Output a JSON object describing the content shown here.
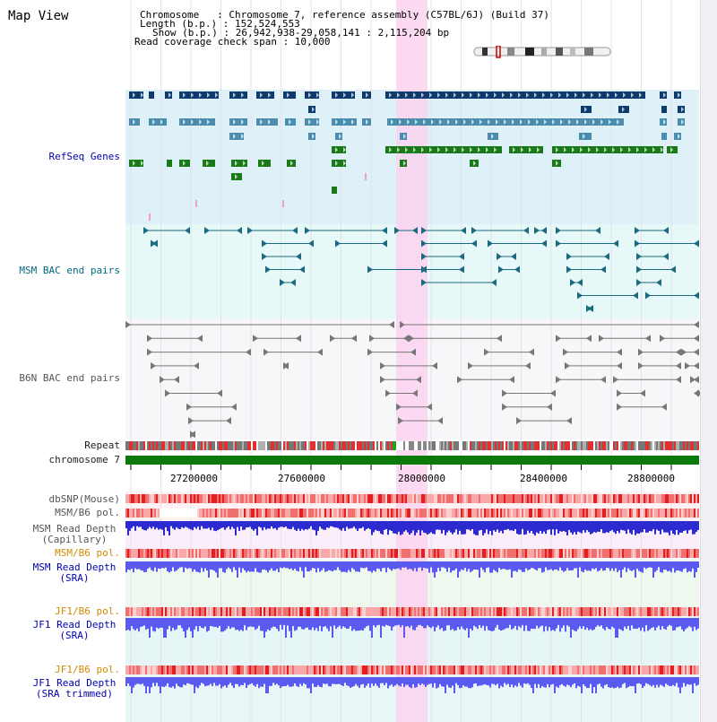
{
  "title": "Map View",
  "info": {
    "line1": "Chromosome   : Chromosome 7, reference assembly (C57BL/6J) (Build 37)",
    "line2": "Length (b.p.) : 152,524,553",
    "line3": "Show (b.p.) : 26,942,938-29,058,141 : 2,115,204 bp",
    "line4": "Read coverage check span : 10,000"
  },
  "tracks": {
    "refseq": "RefSeq Genes",
    "msm_bac": "MSM BAC end pairs",
    "b6n_bac": "B6N BAC end pairs",
    "repeat": "Repeat",
    "chromosome": "chromosome 7",
    "dbsnp": "dbSNP(Mouse)",
    "msm_b6_pol": "MSM/B6 pol.",
    "msm_read_depth_cap_1": "MSM Read Depth",
    "msm_read_depth_cap_2": "(Capillary)",
    "msm_b6_pol_2": "MSM/B6 pol.",
    "msm_read_depth_sra_1": "MSM Read Depth",
    "msm_read_depth_sra_2": "(SRA)",
    "jf1_b6_pol": "JF1/B6 pol.",
    "jf1_read_depth_sra_1": "JF1 Read Depth",
    "jf1_read_depth_sra_2": "(SRA)",
    "jf1_b6_pol_2": "JF1/B6 pol.",
    "jf1_read_depth_trim_1": "JF1 Read Depth",
    "jf1_read_depth_trim_2": "(SRA trimmed)"
  },
  "axis": {
    "ticks": [
      "27200000",
      "27600000",
      "28000000",
      "28400000",
      "28800000"
    ]
  },
  "colors": {
    "refseq_bg": "#dff1f8",
    "msm_bg": "#e6f8f8",
    "b6n_bg": "#f7f7fa",
    "highlight": "#fbd4f0",
    "gene_navy": "#0f3a6e",
    "gene_steel": "#4a8cae",
    "gene_green": "#1a7a1a",
    "bac_teal": "#1d6a80",
    "bac_gray": "#777777",
    "chromosome_bar": "#0b7a0b",
    "read_depth": "#5a5af0",
    "snp_red": "#f07070"
  }
}
